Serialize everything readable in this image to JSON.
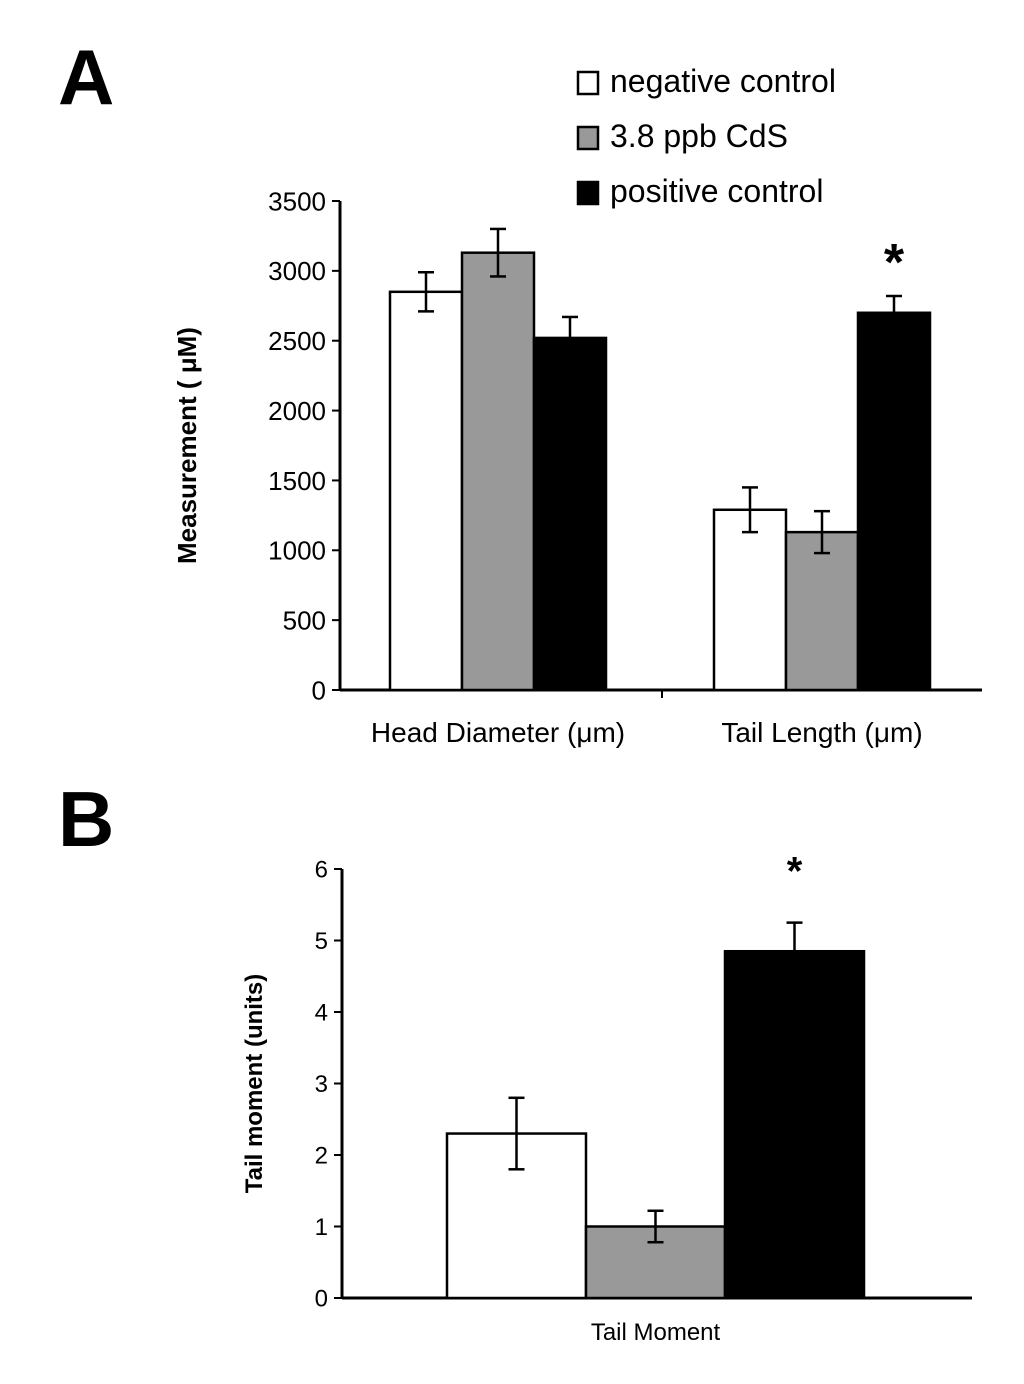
{
  "figure": {
    "panel_a_label": "A",
    "panel_b_label": "B"
  },
  "chart_data": [
    {
      "type": "bar",
      "panel": "A",
      "title": "",
      "xlabel": "",
      "ylabel": "Measurement ( μM)",
      "ylim": [
        0,
        3500
      ],
      "yticks": [
        0,
        500,
        1000,
        1500,
        2000,
        2500,
        3000,
        3500
      ],
      "grid": false,
      "legend_position": "top-right",
      "categories": [
        "Head Diameter (μm)",
        "Tail Length (μm)"
      ],
      "series": [
        {
          "name": "negative control",
          "color": "#ffffff",
          "values": [
            2850,
            1290
          ],
          "errors": [
            140,
            160
          ]
        },
        {
          "name": "3.8 ppb CdS",
          "color": "#999999",
          "values": [
            3130,
            1130
          ],
          "errors": [
            170,
            150
          ]
        },
        {
          "name": "positive control",
          "color": "#000000",
          "values": [
            2520,
            2700
          ],
          "errors": [
            150,
            120
          ]
        }
      ],
      "annotations": [
        {
          "text": "*",
          "category": "Tail Length (μm)",
          "series": "positive control"
        }
      ]
    },
    {
      "type": "bar",
      "panel": "B",
      "title": "",
      "xlabel": "",
      "ylabel": "Tail moment (units)",
      "ylim": [
        0,
        6
      ],
      "yticks": [
        0,
        1,
        2,
        3,
        4,
        5,
        6
      ],
      "grid": false,
      "categories": [
        "Tail Moment"
      ],
      "series": [
        {
          "name": "negative control",
          "color": "#ffffff",
          "values": [
            2.3
          ],
          "errors": [
            0.5
          ]
        },
        {
          "name": "3.8 ppb CdS",
          "color": "#999999",
          "values": [
            1.0
          ],
          "errors": [
            0.22
          ]
        },
        {
          "name": "positive control",
          "color": "#000000",
          "values": [
            4.85
          ],
          "errors": [
            0.4
          ]
        }
      ],
      "annotations": [
        {
          "text": "*",
          "category": "Tail Moment",
          "series": "positive control"
        }
      ]
    }
  ]
}
